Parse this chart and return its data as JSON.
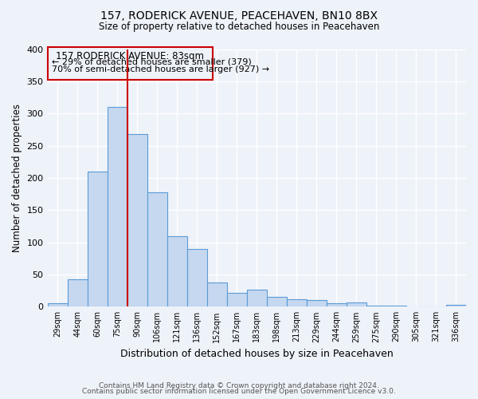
{
  "title": "157, RODERICK AVENUE, PEACEHAVEN, BN10 8BX",
  "subtitle": "Size of property relative to detached houses in Peacehaven",
  "xlabel": "Distribution of detached houses by size in Peacehaven",
  "ylabel": "Number of detached properties",
  "bar_labels": [
    "29sqm",
    "44sqm",
    "60sqm",
    "75sqm",
    "90sqm",
    "106sqm",
    "121sqm",
    "136sqm",
    "152sqm",
    "167sqm",
    "183sqm",
    "198sqm",
    "213sqm",
    "229sqm",
    "244sqm",
    "259sqm",
    "275sqm",
    "290sqm",
    "305sqm",
    "321sqm",
    "336sqm"
  ],
  "bar_values": [
    5,
    42,
    210,
    310,
    268,
    178,
    110,
    90,
    38,
    22,
    26,
    15,
    12,
    10,
    5,
    7,
    2,
    1,
    0,
    0,
    3
  ],
  "bar_color": "#c5d8f0",
  "bar_edge_color": "#5b9bd5",
  "property_line_color": "#cc0000",
  "ylim": [
    0,
    400
  ],
  "yticks": [
    0,
    50,
    100,
    150,
    200,
    250,
    300,
    350,
    400
  ],
  "annotation_title": "157 RODERICK AVENUE: 83sqm",
  "annotation_line1": "← 29% of detached houses are smaller (379)",
  "annotation_line2": "70% of semi-detached houses are larger (927) →",
  "annotation_box_color": "#cc0000",
  "footer_line1": "Contains HM Land Registry data © Crown copyright and database right 2024.",
  "footer_line2": "Contains public sector information licensed under the Open Government Licence v3.0.",
  "background_color": "#eef2f9",
  "grid_color": "#ffffff"
}
